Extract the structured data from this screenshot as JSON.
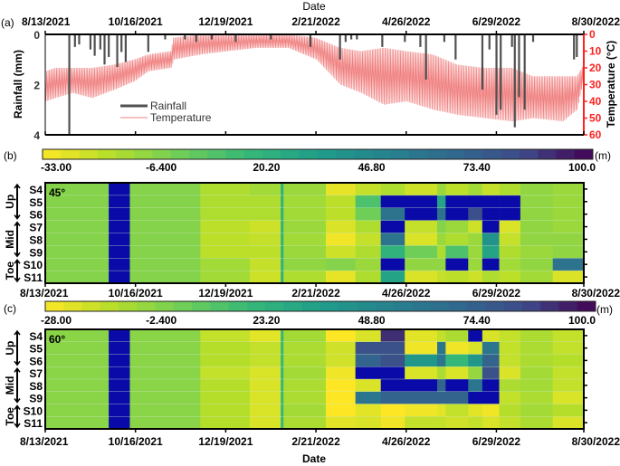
{
  "date_label": "Date",
  "date_ticks": [
    "8/13/2021",
    "10/16/2021",
    "12/19/2021",
    "2/21/2022",
    "4/26/2022",
    "6/29/2022",
    "8/30/2022"
  ],
  "rows": [
    "S4",
    "S5",
    "S6",
    "S7",
    "S8",
    "S9",
    "S10",
    "S11"
  ],
  "groups": [
    {
      "label": "Up",
      "from": 0,
      "to": 2
    },
    {
      "label": "Mid",
      "from": 3,
      "to": 5
    },
    {
      "label": "Toe",
      "from": 6,
      "to": 7
    }
  ],
  "chart_data": [
    {
      "panel": "(a)",
      "type": "line",
      "xlabel": "Date",
      "xlim": [
        "8/13/2021",
        "8/30/2022"
      ],
      "ylabel_left": "Rainfall (mm)",
      "ylim_left": [
        4,
        0
      ],
      "yticks_left": [
        "0",
        "2",
        "4"
      ],
      "ylabel_right": "Temperature (°C)",
      "ylim_right": [
        60,
        0
      ],
      "yticks_right": [
        "0",
        "10",
        "20",
        "30",
        "40",
        "50",
        "60"
      ],
      "right_axis_color": "#ff2020",
      "legend": {
        "placement": "lower-left",
        "entries": [
          "Rainfall",
          "Temperature"
        ]
      },
      "series": [
        {
          "name": "Rainfall",
          "type": "bar",
          "color": "#505050",
          "points": [
            [
              "8/30/2021",
              4.0
            ],
            [
              "9/3/2021",
              0.5
            ],
            [
              "9/6/2021",
              0.4
            ],
            [
              "9/14/2021",
              0.6
            ],
            [
              "9/17/2021",
              0.85
            ],
            [
              "9/21/2021",
              0.6
            ],
            [
              "9/24/2021",
              1.2
            ],
            [
              "9/27/2021",
              0.9
            ],
            [
              "10/3/2021",
              1.3
            ],
            [
              "10/6/2021",
              0.7
            ],
            [
              "10/9/2021",
              1.1
            ],
            [
              "10/25/2021",
              0.7
            ],
            [
              "11/6/2021",
              0.2
            ],
            [
              "11/20/2021",
              0.2
            ],
            [
              "11/28/2021",
              0.3
            ],
            [
              "12/9/2021",
              0.2
            ],
            [
              "12/26/2021",
              0.3
            ],
            [
              "1/20/2022",
              0.2
            ],
            [
              "2/17/2022",
              0.5
            ],
            [
              "3/10/2022",
              1.0
            ],
            [
              "3/14/2022",
              0.3
            ],
            [
              "3/18/2022",
              0.2
            ],
            [
              "3/22/2022",
              0.2
            ],
            [
              "4/9/2022",
              0.5
            ],
            [
              "4/25/2022",
              0.3
            ],
            [
              "5/6/2022",
              0.5
            ],
            [
              "5/10/2022",
              1.8
            ],
            [
              "5/23/2022",
              0.3
            ],
            [
              "5/31/2022",
              1.0
            ],
            [
              "6/19/2022",
              2.2
            ],
            [
              "6/24/2022",
              0.6
            ],
            [
              "6/29/2022",
              3.2
            ],
            [
              "7/2/2022",
              3.0
            ],
            [
              "7/10/2022",
              0.5
            ],
            [
              "7/12/2022",
              3.7
            ],
            [
              "7/15/2022",
              2.5
            ],
            [
              "7/19/2022",
              3.0
            ],
            [
              "7/25/2022",
              0.3
            ],
            [
              "8/23/2022",
              1.0
            ],
            [
              "8/25/2022",
              0.9
            ]
          ]
        },
        {
          "name": "Temperature",
          "type": "line",
          "color": "#f08080",
          "envelope": [
            [
              "8/13/2021",
              22,
              40
            ],
            [
              "8/20/2021",
              20,
              38
            ],
            [
              "9/1/2021",
              20,
              35
            ],
            [
              "9/15/2021",
              20,
              38
            ],
            [
              "10/1/2021",
              18,
              33
            ],
            [
              "10/15/2021",
              15,
              28
            ],
            [
              "10/25/2021",
              12,
              22
            ],
            [
              "11/10/2021",
              10,
              20
            ],
            [
              "11/12/2021",
              2,
              15
            ],
            [
              "12/1/2021",
              0,
              12
            ],
            [
              "12/20/2021",
              0,
              10
            ],
            [
              "1/10/2022",
              0,
              8
            ],
            [
              "2/1/2022",
              0,
              8
            ],
            [
              "2/21/2022",
              2,
              15
            ],
            [
              "3/10/2022",
              8,
              30
            ],
            [
              "3/25/2022",
              10,
              35
            ],
            [
              "4/10/2022",
              8,
              42
            ],
            [
              "4/26/2022",
              10,
              40
            ],
            [
              "5/15/2022",
              12,
              45
            ],
            [
              "6/1/2022",
              18,
              48
            ],
            [
              "6/20/2022",
              20,
              50
            ],
            [
              "7/10/2022",
              20,
              52
            ],
            [
              "7/25/2022",
              25,
              50
            ],
            [
              "8/15/2022",
              25,
              52
            ],
            [
              "8/25/2022",
              25,
              45
            ],
            [
              "8/30/2022",
              18,
              25
            ]
          ]
        }
      ]
    },
    {
      "panel": "(b)",
      "type": "heatmap",
      "annotation": "45°",
      "unit": "(m)",
      "colorbar_range": [
        -33,
        100
      ],
      "colorbar_ticks": [
        "-33.00",
        "-6.400",
        "20.20",
        "46.80",
        "73.40",
        "100.0"
      ],
      "over_color": "#0a0aa8",
      "column_edges": [
        "8/13/2021",
        "9/27/2021",
        "10/12/2021",
        "12/1/2021",
        "1/5/2022",
        "1/27/2022",
        "1/29/2022",
        "2/28/2022",
        "3/21/2022",
        "4/8/2022",
        "4/25/2022",
        "5/18/2022",
        "5/24/2022",
        "6/9/2022",
        "6/19/2022",
        "7/1/2022",
        "7/16/2022",
        "8/8/2022",
        "8/30/2022"
      ],
      "values": [
        [
          -5,
          "over",
          -5,
          -15,
          -12,
          20,
          -10,
          -28,
          -20,
          -15,
          -22,
          -10,
          -18,
          -12,
          -20,
          -15,
          -8,
          -10
        ],
        [
          -5,
          "over",
          -5,
          -15,
          -15,
          20,
          -12,
          -18,
          10,
          "over",
          "over",
          30,
          "over",
          "over",
          "over",
          "over",
          -8,
          -10
        ],
        [
          -5,
          "over",
          -5,
          -15,
          -15,
          20,
          -12,
          -18,
          0,
          60,
          "over",
          60,
          "over",
          80,
          "over",
          "over",
          -8,
          -10
        ],
        [
          -5,
          "over",
          -5,
          -18,
          -22,
          20,
          -10,
          -25,
          -15,
          "over",
          -20,
          -5,
          -10,
          -22,
          "over",
          -25,
          -8,
          -10
        ],
        [
          -5,
          "over",
          -5,
          -18,
          -20,
          20,
          -12,
          -30,
          -20,
          60,
          -25,
          -10,
          -15,
          -10,
          40,
          -20,
          -8,
          -8
        ],
        [
          -5,
          "over",
          -5,
          -18,
          -18,
          20,
          -10,
          -22,
          -15,
          20,
          0,
          -15,
          10,
          -10,
          30,
          -15,
          -10,
          -8
        ],
        [
          -5,
          "over",
          -5,
          -12,
          -20,
          20,
          -8,
          -5,
          -10,
          "over",
          -8,
          -8,
          "over",
          -10,
          "over",
          -12,
          -8,
          60
        ],
        [
          -5,
          "over",
          -5,
          -12,
          -22,
          20,
          -15,
          -28,
          -15,
          30,
          -25,
          -20,
          -18,
          -22,
          -15,
          -18,
          -12,
          -25
        ]
      ]
    },
    {
      "panel": "(c)",
      "type": "heatmap",
      "annotation": "60°",
      "unit": "(m)",
      "colorbar_range": [
        -28,
        100
      ],
      "colorbar_ticks": [
        "-28.00",
        "-2.400",
        "23.20",
        "48.80",
        "74.40",
        "100.0"
      ],
      "over_color": "#0a0aa8",
      "column_edges": [
        "8/13/2021",
        "9/27/2021",
        "10/12/2021",
        "12/1/2021",
        "1/5/2022",
        "1/27/2022",
        "1/29/2022",
        "2/28/2022",
        "3/21/2022",
        "4/8/2022",
        "4/25/2022",
        "5/18/2022",
        "5/24/2022",
        "6/9/2022",
        "6/19/2022",
        "7/1/2022",
        "7/16/2022",
        "8/8/2022",
        "8/30/2022"
      ],
      "values": [
        [
          -2,
          "over",
          -2,
          -15,
          -22,
          20,
          -8,
          -28,
          -20,
          90,
          -22,
          -15,
          -10,
          "over",
          -20,
          -15,
          -10,
          -15
        ],
        [
          -2,
          "over",
          -2,
          -12,
          -15,
          20,
          -10,
          -18,
          80,
          80,
          -25,
          60,
          -25,
          -20,
          60,
          -15,
          -10,
          -15
        ],
        [
          -2,
          "over",
          -2,
          -12,
          -15,
          20,
          -10,
          -18,
          70,
          80,
          40,
          60,
          20,
          40,
          70,
          -15,
          -10,
          -12
        ],
        [
          -2,
          "over",
          -2,
          -15,
          -20,
          20,
          -8,
          -25,
          "over",
          "over",
          -20,
          -10,
          -20,
          -5,
          80,
          -20,
          -8,
          -15
        ],
        [
          -2,
          "over",
          -2,
          -12,
          -20,
          20,
          -10,
          -28,
          -20,
          "over",
          "over",
          70,
          "over",
          60,
          "over",
          -10,
          -8,
          -15
        ],
        [
          -2,
          "over",
          -2,
          -12,
          -20,
          20,
          -10,
          -28,
          60,
          70,
          70,
          70,
          70,
          "over",
          "over",
          -15,
          -10,
          -20
        ],
        [
          -2,
          "over",
          -2,
          -12,
          -20,
          20,
          -8,
          -28,
          -22,
          -28,
          -25,
          -22,
          -15,
          -22,
          -25,
          -12,
          -8,
          -12
        ],
        [
          -2,
          "over",
          -2,
          -12,
          -20,
          20,
          -10,
          -22,
          -20,
          -25,
          -15,
          -15,
          -18,
          -15,
          -20,
          -15,
          -10,
          -20
        ]
      ]
    }
  ]
}
